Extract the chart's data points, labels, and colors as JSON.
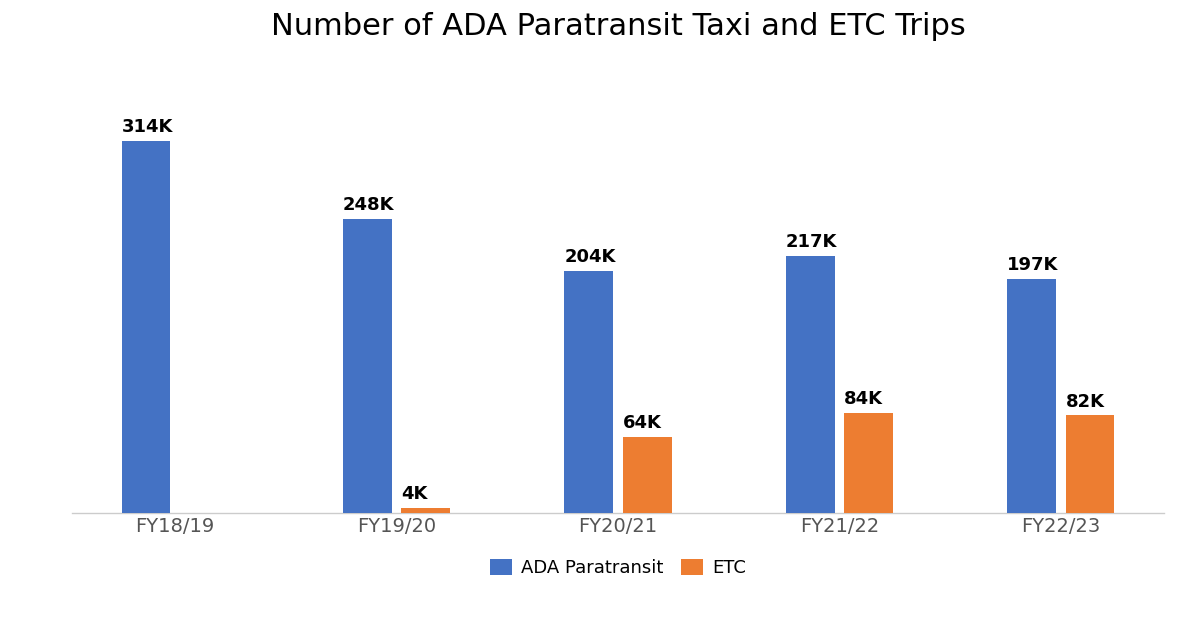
{
  "title": "Number of ADA Paratransit Taxi and ETC Trips",
  "categories": [
    "FY18/19",
    "FY19/20",
    "FY20/21",
    "FY21/22",
    "FY22/23"
  ],
  "ada_values": [
    314000,
    248000,
    204000,
    217000,
    197000
  ],
  "etc_values": [
    0,
    4000,
    64000,
    84000,
    82000
  ],
  "ada_labels": [
    "314K",
    "248K",
    "204K",
    "217K",
    "197K"
  ],
  "etc_labels": [
    "",
    "4K",
    "64K",
    "84K",
    "82K"
  ],
  "ada_color": "#4472C4",
  "etc_color": "#ED7D31",
  "background_color": "#FFFFFF",
  "title_fontsize": 22,
  "label_fontsize": 13,
  "tick_fontsize": 14,
  "legend_fontsize": 13,
  "bar_width": 0.22,
  "ylim": [
    0,
    380000
  ],
  "legend_labels": [
    "ADA Paratransit",
    "ETC"
  ]
}
